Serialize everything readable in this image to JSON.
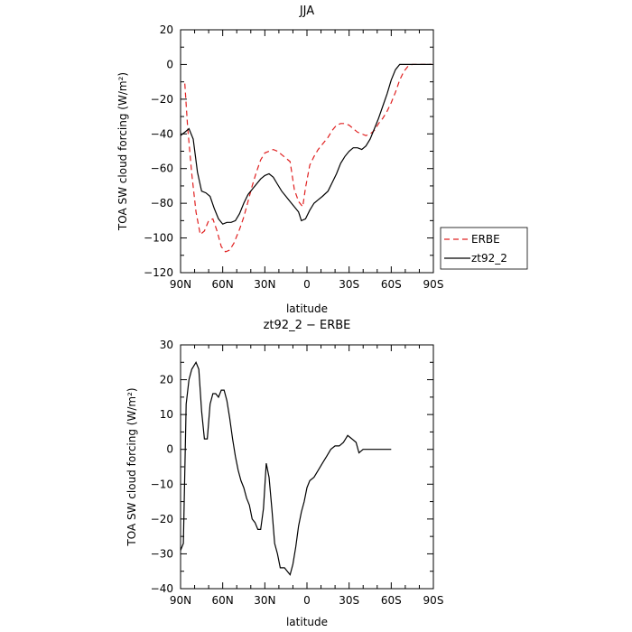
{
  "chart_data": [
    {
      "type": "line",
      "title": "JJA",
      "xlabel": "latitude",
      "ylabel": "TOA SW cloud forcing (W/m²)",
      "xlim": [
        90,
        -90
      ],
      "ylim": [
        -120,
        20
      ],
      "x_ticks": [
        90,
        60,
        30,
        0,
        -30,
        -60,
        -90
      ],
      "x_tick_labels": [
        "90N",
        "60N",
        "30N",
        "0",
        "30S",
        "60S",
        "90S"
      ],
      "y_ticks": [
        -120,
        -100,
        -80,
        -60,
        -40,
        -20,
        0,
        20
      ],
      "y_tick_labels": [
        "−120",
        "−100",
        "−80",
        "−60",
        "−40",
        "−20",
        "0",
        "20"
      ],
      "legend_position": "right",
      "series": [
        {
          "name": "ERBE",
          "color": "#e02020",
          "style": "dashed",
          "points": [
            [
              87,
              -11
            ],
            [
              85,
              -36
            ],
            [
              82,
              -63
            ],
            [
              79,
              -85
            ],
            [
              76,
              -98
            ],
            [
              73,
              -96
            ],
            [
              70,
              -90
            ],
            [
              67,
              -89
            ],
            [
              64,
              -96
            ],
            [
              61,
              -105
            ],
            [
              58,
              -108
            ],
            [
              55,
              -107
            ],
            [
              52,
              -103
            ],
            [
              48,
              -95
            ],
            [
              45,
              -88
            ],
            [
              42,
              -79
            ],
            [
              39,
              -70
            ],
            [
              36,
              -62
            ],
            [
              33,
              -55
            ],
            [
              30,
              -51
            ],
            [
              27,
              -50
            ],
            [
              24,
              -49
            ],
            [
              21,
              -50
            ],
            [
              18,
              -52
            ],
            [
              15,
              -54
            ],
            [
              12,
              -56
            ],
            [
              9,
              -72
            ],
            [
              6,
              -79
            ],
            [
              3,
              -82
            ],
            [
              1,
              -71
            ],
            [
              -2,
              -58
            ],
            [
              -5,
              -53
            ],
            [
              -8,
              -49
            ],
            [
              -11,
              -46
            ],
            [
              -15,
              -42
            ],
            [
              -18,
              -38
            ],
            [
              -21,
              -35
            ],
            [
              -24,
              -34
            ],
            [
              -27,
              -34
            ],
            [
              -30,
              -35
            ],
            [
              -33,
              -37
            ],
            [
              -36,
              -39
            ],
            [
              -39,
              -40
            ],
            [
              -42,
              -41
            ],
            [
              -45,
              -40
            ],
            [
              -48,
              -38
            ],
            [
              -51,
              -34
            ],
            [
              -54,
              -31
            ],
            [
              -57,
              -27
            ],
            [
              -60,
              -22
            ],
            [
              -63,
              -16
            ],
            [
              -66,
              -9
            ],
            [
              -69,
              -4
            ],
            [
              -72,
              -1
            ],
            [
              -75,
              0
            ],
            [
              -78,
              0
            ],
            [
              -81,
              0
            ],
            [
              -84,
              0
            ],
            [
              -87,
              0
            ],
            [
              -89,
              0
            ]
          ]
        },
        {
          "name": "zt92_2",
          "color": "#000000",
          "style": "solid",
          "points": [
            [
              90,
              -41
            ],
            [
              87,
              -39
            ],
            [
              84,
              -37
            ],
            [
              81,
              -43
            ],
            [
              78,
              -62
            ],
            [
              75,
              -73
            ],
            [
              72,
              -74
            ],
            [
              69,
              -76
            ],
            [
              66,
              -83
            ],
            [
              63,
              -89
            ],
            [
              60,
              -92
            ],
            [
              57,
              -91
            ],
            [
              54,
              -91
            ],
            [
              51,
              -90
            ],
            [
              48,
              -86
            ],
            [
              45,
              -80
            ],
            [
              42,
              -75
            ],
            [
              39,
              -72
            ],
            [
              36,
              -69
            ],
            [
              33,
              -66
            ],
            [
              30,
              -64
            ],
            [
              27,
              -63
            ],
            [
              24,
              -65
            ],
            [
              21,
              -69
            ],
            [
              18,
              -73
            ],
            [
              15,
              -76
            ],
            [
              12,
              -79
            ],
            [
              9,
              -82
            ],
            [
              6,
              -85
            ],
            [
              4,
              -90
            ],
            [
              1,
              -89
            ],
            [
              -2,
              -84
            ],
            [
              -5,
              -80
            ],
            [
              -8,
              -78
            ],
            [
              -11,
              -76
            ],
            [
              -15,
              -73
            ],
            [
              -18,
              -68
            ],
            [
              -21,
              -63
            ],
            [
              -24,
              -57
            ],
            [
              -27,
              -53
            ],
            [
              -30,
              -50
            ],
            [
              -33,
              -48
            ],
            [
              -36,
              -48
            ],
            [
              -39,
              -49
            ],
            [
              -42,
              -47
            ],
            [
              -45,
              -43
            ],
            [
              -48,
              -37
            ],
            [
              -51,
              -31
            ],
            [
              -54,
              -24
            ],
            [
              -57,
              -17
            ],
            [
              -60,
              -9
            ],
            [
              -63,
              -3
            ],
            [
              -66,
              0
            ],
            [
              -69,
              0
            ],
            [
              -72,
              0
            ],
            [
              -75,
              0
            ],
            [
              -78,
              0
            ],
            [
              -81,
              0
            ],
            [
              -84,
              0
            ],
            [
              -87,
              0
            ],
            [
              -89,
              0
            ]
          ]
        }
      ]
    },
    {
      "type": "line",
      "title": "zt92_2 − ERBE",
      "xlabel": "latitude",
      "ylabel": "TOA SW cloud forcing (W/m²)",
      "xlim": [
        90,
        -90
      ],
      "ylim": [
        -40,
        30
      ],
      "x_ticks": [
        90,
        60,
        30,
        0,
        -30,
        -60,
        -90
      ],
      "x_tick_labels": [
        "90N",
        "60N",
        "30N",
        "0",
        "30S",
        "60S",
        "90S"
      ],
      "y_ticks": [
        -40,
        -30,
        -20,
        -10,
        0,
        10,
        20,
        30
      ],
      "y_tick_labels": [
        "−40",
        "−30",
        "−20",
        "−10",
        "0",
        "10",
        "20",
        "30"
      ],
      "series": [
        {
          "color": "#000000",
          "style": "solid",
          "points": [
            [
              90,
              -29
            ],
            [
              88,
              -27
            ],
            [
              86,
              13
            ],
            [
              84,
              20
            ],
            [
              82,
              23
            ],
            [
              79,
              25
            ],
            [
              77,
              23
            ],
            [
              75,
              11
            ],
            [
              73,
              3
            ],
            [
              71,
              3
            ],
            [
              69,
              13
            ],
            [
              67,
              16
            ],
            [
              65,
              16
            ],
            [
              63,
              15
            ],
            [
              61,
              17
            ],
            [
              59,
              17
            ],
            [
              57,
              14
            ],
            [
              55,
              9
            ],
            [
              53,
              3
            ],
            [
              51,
              -2
            ],
            [
              49,
              -6
            ],
            [
              47,
              -9
            ],
            [
              45,
              -11
            ],
            [
              43,
              -14
            ],
            [
              41,
              -16
            ],
            [
              39,
              -20
            ],
            [
              37,
              -21
            ],
            [
              35,
              -23
            ],
            [
              33,
              -23
            ],
            [
              31,
              -17
            ],
            [
              29,
              -4
            ],
            [
              27,
              -8
            ],
            [
              25,
              -17
            ],
            [
              23,
              -27
            ],
            [
              21,
              -30
            ],
            [
              19,
              -34
            ],
            [
              16,
              -34
            ],
            [
              14,
              -35
            ],
            [
              12,
              -36
            ],
            [
              10,
              -33
            ],
            [
              8,
              -28
            ],
            [
              6,
              -22
            ],
            [
              4,
              -18
            ],
            [
              2,
              -15
            ],
            [
              0,
              -11
            ],
            [
              -2,
              -9
            ],
            [
              -5,
              -8
            ],
            [
              -8,
              -6
            ],
            [
              -11,
              -4
            ],
            [
              -14,
              -2
            ],
            [
              -17,
              0
            ],
            [
              -20,
              1
            ],
            [
              -23,
              1
            ],
            [
              -26,
              2
            ],
            [
              -29,
              4
            ],
            [
              -32,
              3
            ],
            [
              -35,
              2
            ],
            [
              -37,
              -1
            ],
            [
              -40,
              0
            ],
            [
              -43,
              0
            ],
            [
              -46,
              0
            ],
            [
              -49,
              0
            ],
            [
              -52,
              0
            ],
            [
              -55,
              0
            ],
            [
              -58,
              0
            ],
            [
              -60,
              0
            ]
          ]
        }
      ]
    }
  ]
}
